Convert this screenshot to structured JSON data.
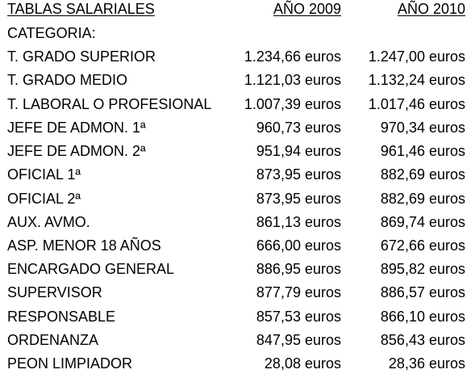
{
  "header": {
    "title": "TABLAS SALARIALES",
    "col_2009": "AÑO 2009",
    "col_2010": "AÑO 2010"
  },
  "category_label": "CATEGORIA:",
  "rows": [
    {
      "category": "T. GRADO SUPERIOR",
      "y2009": "1.234,66 euros",
      "y2010": "1.247,00 euros"
    },
    {
      "category": "T. GRADO MEDIO",
      "y2009": "1.121,03 euros",
      "y2010": "1.132,24 euros"
    },
    {
      "category": "T. LABORAL O PROFESIONAL",
      "y2009": "1.007,39 euros",
      "y2010": "1.017,46 euros"
    },
    {
      "category": "JEFE DE ADMON. 1ª",
      "y2009": "960,73 euros",
      "y2010": "970,34 euros"
    },
    {
      "category": "JEFE DE ADMON. 2ª",
      "y2009": "951,94 euros",
      "y2010": "961,46 euros"
    },
    {
      "category": "OFICIAL 1ª",
      "y2009": "873,95 euros",
      "y2010": "882,69 euros"
    },
    {
      "category": "OFICIAL 2ª",
      "y2009": "873,95 euros",
      "y2010": "882,69 euros"
    },
    {
      "category": "AUX. AVMO.",
      "y2009": "861,13 euros",
      "y2010": "869,74 euros"
    },
    {
      "category": "ASP. MENOR 18 AÑOS",
      "y2009": "666,00 euros",
      "y2010": "672,66 euros"
    },
    {
      "category": "ENCARGADO GENERAL",
      "y2009": "886,95 euros",
      "y2010": "895,82 euros"
    },
    {
      "category": "SUPERVISOR",
      "y2009": "877,79 euros",
      "y2010": "886,57 euros"
    },
    {
      "category": "RESPONSABLE",
      "y2009": "857,53 euros",
      "y2010": "866,10 euros"
    },
    {
      "category": "ORDENANZA",
      "y2009": "847,95 euros",
      "y2010": "856,43 euros"
    },
    {
      "category": "PEON LIMPIADOR",
      "y2009": "28,08 euros",
      "y2010": "28,36 euros"
    }
  ]
}
